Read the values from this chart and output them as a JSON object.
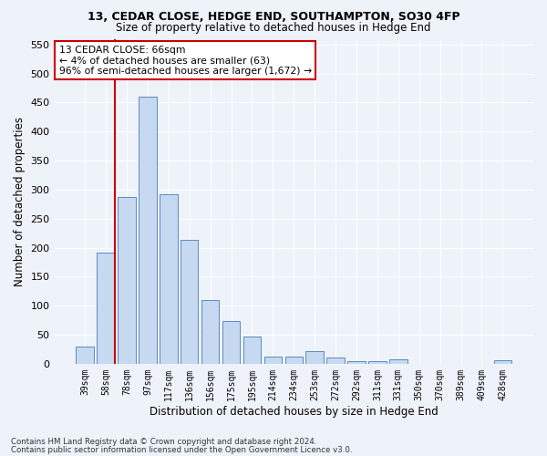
{
  "title_line1": "13, CEDAR CLOSE, HEDGE END, SOUTHAMPTON, SO30 4FP",
  "title_line2": "Size of property relative to detached houses in Hedge End",
  "xlabel": "Distribution of detached houses by size in Hedge End",
  "ylabel": "Number of detached properties",
  "categories": [
    "39sqm",
    "58sqm",
    "78sqm",
    "97sqm",
    "117sqm",
    "136sqm",
    "156sqm",
    "175sqm",
    "195sqm",
    "214sqm",
    "234sqm",
    "253sqm",
    "272sqm",
    "292sqm",
    "311sqm",
    "331sqm",
    "350sqm",
    "370sqm",
    "389sqm",
    "409sqm",
    "428sqm"
  ],
  "values": [
    30,
    192,
    288,
    460,
    292,
    213,
    110,
    74,
    47,
    13,
    12,
    21,
    10,
    5,
    5,
    7,
    0,
    0,
    0,
    0,
    6
  ],
  "bar_color": "#c6d9f0",
  "bar_edge_color": "#5a8ac6",
  "vline_color": "#cc0000",
  "annotation_text": "13 CEDAR CLOSE: 66sqm\n← 4% of detached houses are smaller (63)\n96% of semi-detached houses are larger (1,672) →",
  "annotation_box_color": "#ffffff",
  "annotation_box_edge_color": "#cc0000",
  "ylim": [
    0,
    560
  ],
  "yticks": [
    0,
    50,
    100,
    150,
    200,
    250,
    300,
    350,
    400,
    450,
    500,
    550
  ],
  "footer_line1": "Contains HM Land Registry data © Crown copyright and database right 2024.",
  "footer_line2": "Contains public sector information licensed under the Open Government Licence v3.0.",
  "bg_color": "#eef2f9",
  "grid_color": "#ffffff"
}
